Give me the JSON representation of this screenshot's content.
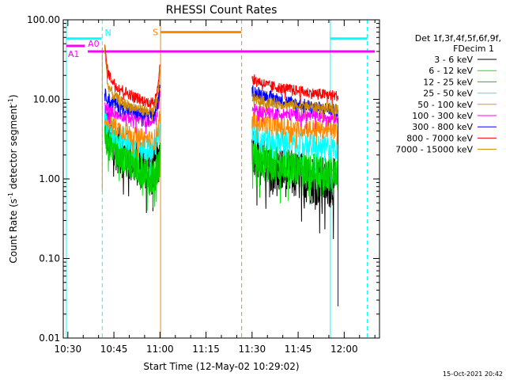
{
  "chart_data": {
    "type": "line",
    "title": "RHESSI Count Rates",
    "xlabel": "Start Time (12-May-02 10:29:02)",
    "ylabel_main": "Count Rate (s",
    "ylabel_sup": "-1",
    "ylabel_rest": " detector segment",
    "ylabel_sup2": "-1",
    "ylabel_end": ")",
    "y_scale": "log",
    "ylim": [
      0.01,
      100
    ],
    "xlim_minutes_after_1029": [
      -0.5,
      102.5
    ],
    "x_ticks": [
      {
        "m": 1,
        "label": "10:30"
      },
      {
        "m": 16,
        "label": "10:45"
      },
      {
        "m": 31,
        "label": "11:00"
      },
      {
        "m": 46,
        "label": "11:15"
      },
      {
        "m": 61,
        "label": "11:30"
      },
      {
        "m": 76,
        "label": "11:45"
      },
      {
        "m": 91,
        "label": "12:00"
      }
    ],
    "y_ticks": [
      {
        "v": 0.01,
        "label": "0.01"
      },
      {
        "v": 0.1,
        "label": "0.10"
      },
      {
        "v": 1,
        "label": "1.00"
      },
      {
        "v": 10,
        "label": "10.00"
      },
      {
        "v": 100,
        "label": "100.00"
      }
    ],
    "legend": {
      "position": "top-right",
      "header1": "Det 1f,3f,4f,5f,6f,9f,",
      "header2": "FDecim 1"
    },
    "series": [
      {
        "name": "3 - 6 keV",
        "color": "#000000",
        "seg1": [
          [
            13,
            5.0
          ],
          [
            15,
            3.2
          ],
          [
            18,
            2.2
          ],
          [
            22,
            1.7
          ],
          [
            26,
            1.5
          ],
          [
            29,
            1.2
          ],
          [
            30.5,
            1.7
          ],
          [
            31,
            2.5
          ]
        ],
        "seg2": [
          [
            61,
            2.5
          ],
          [
            63,
            2.0
          ],
          [
            66,
            1.6
          ],
          [
            70,
            1.3
          ],
          [
            75,
            1.1
          ],
          [
            80,
            1.0
          ],
          [
            85,
            0.9
          ],
          [
            89,
            0.85
          ]
        ],
        "noise": 0.32
      },
      {
        "name": "6 - 12 keV",
        "color": "#00ee00",
        "seg1": [
          [
            13,
            4.0
          ],
          [
            15,
            3.0
          ],
          [
            18,
            2.2
          ],
          [
            22,
            1.6
          ],
          [
            26,
            1.3
          ],
          [
            29,
            1.1
          ],
          [
            30.5,
            1.5
          ],
          [
            31,
            2.0
          ]
        ],
        "seg2": [
          [
            61,
            2.0
          ],
          [
            63,
            1.9
          ],
          [
            66,
            1.7
          ],
          [
            70,
            1.5
          ],
          [
            75,
            1.4
          ],
          [
            80,
            1.3
          ],
          [
            85,
            1.25
          ],
          [
            89,
            1.2
          ]
        ],
        "noise": 0.22
      },
      {
        "name": "12 - 25 keV",
        "color": "#00cc00",
        "seg1": [
          [
            13,
            3.5
          ],
          [
            15,
            2.8
          ],
          [
            18,
            2.0
          ],
          [
            22,
            1.5
          ],
          [
            26,
            1.2
          ],
          [
            29,
            1.0
          ],
          [
            30.5,
            1.4
          ],
          [
            31,
            1.8
          ]
        ],
        "seg2": [
          [
            61,
            1.8
          ],
          [
            63,
            1.7
          ],
          [
            66,
            1.5
          ],
          [
            70,
            1.4
          ],
          [
            75,
            1.3
          ],
          [
            80,
            1.2
          ],
          [
            85,
            1.15
          ],
          [
            89,
            1.1
          ]
        ],
        "noise": 0.22
      },
      {
        "name": "25 - 50 keV",
        "color": "#00ffff",
        "seg1": [
          [
            13,
            5.5
          ],
          [
            15,
            4.3
          ],
          [
            18,
            3.4
          ],
          [
            22,
            2.8
          ],
          [
            26,
            2.5
          ],
          [
            29,
            2.3
          ],
          [
            30.5,
            3.5
          ],
          [
            31,
            5.0
          ]
        ],
        "seg2": [
          [
            61,
            4.0
          ],
          [
            63,
            3.6
          ],
          [
            66,
            3.2
          ],
          [
            70,
            3.0
          ],
          [
            75,
            2.8
          ],
          [
            80,
            2.6
          ],
          [
            85,
            2.5
          ],
          [
            89,
            2.4
          ]
        ],
        "noise": 0.16
      },
      {
        "name": "50 - 100 keV",
        "color": "#ff8800",
        "seg1": [
          [
            13,
            5.8
          ],
          [
            15,
            5.0
          ],
          [
            18,
            4.2
          ],
          [
            22,
            3.6
          ],
          [
            26,
            3.2
          ],
          [
            29,
            3.0
          ],
          [
            30.5,
            4.5
          ],
          [
            31,
            7.0
          ]
        ],
        "seg2": [
          [
            61,
            5.5
          ],
          [
            63,
            5.2
          ],
          [
            66,
            4.8
          ],
          [
            70,
            4.6
          ],
          [
            75,
            4.4
          ],
          [
            80,
            4.3
          ],
          [
            85,
            4.2
          ],
          [
            89,
            4.1
          ]
        ],
        "noise": 0.12
      },
      {
        "name": "100 - 300 keV",
        "color": "#ff00ff",
        "seg1": [
          [
            13,
            8.0
          ],
          [
            15,
            7.2
          ],
          [
            18,
            6.4
          ],
          [
            22,
            5.8
          ],
          [
            26,
            5.4
          ],
          [
            29,
            5.2
          ],
          [
            30.5,
            8.0
          ],
          [
            31,
            12.0
          ]
        ],
        "seg2": [
          [
            61,
            7.5
          ],
          [
            63,
            7.2
          ],
          [
            66,
            6.9
          ],
          [
            70,
            6.6
          ],
          [
            75,
            6.4
          ],
          [
            80,
            6.2
          ],
          [
            85,
            6.1
          ],
          [
            89,
            6.0
          ]
        ],
        "noise": 0.08
      },
      {
        "name": "300 - 800 keV",
        "color": "#0000ff",
        "seg1": [
          [
            13,
            11.5
          ],
          [
            15,
            9.5
          ],
          [
            18,
            8.0
          ],
          [
            22,
            7.0
          ],
          [
            26,
            6.4
          ],
          [
            29,
            6.2
          ],
          [
            30.5,
            9.5
          ],
          [
            31,
            14.0
          ]
        ],
        "seg2": [
          [
            61,
            13.0
          ],
          [
            63,
            12.0
          ],
          [
            66,
            11.0
          ],
          [
            70,
            10.0
          ],
          [
            75,
            9.0
          ],
          [
            80,
            8.2
          ],
          [
            85,
            7.6
          ],
          [
            89,
            7.2
          ]
        ],
        "noise": 0.08,
        "dropTo": 0.025
      },
      {
        "name": "800 - 7000 keV",
        "color": "#ff0000",
        "seg1": [
          [
            13,
            45
          ],
          [
            14,
            22
          ],
          [
            16,
            16
          ],
          [
            19,
            13
          ],
          [
            22,
            11
          ],
          [
            26,
            9.5
          ],
          [
            29,
            9.0
          ],
          [
            30.5,
            16
          ],
          [
            31,
            32
          ]
        ],
        "seg2": [
          [
            61,
            18.0
          ],
          [
            63,
            17.0
          ],
          [
            66,
            15.0
          ],
          [
            70,
            14.0
          ],
          [
            75,
            13.0
          ],
          [
            80,
            12.0
          ],
          [
            85,
            11.5
          ],
          [
            89,
            11.0
          ]
        ],
        "noise": 0.07
      },
      {
        "name": "7000 - 15000 keV",
        "color": "#cc8800",
        "seg1": [
          [
            13,
            45
          ],
          [
            14,
            15
          ],
          [
            16,
            11
          ],
          [
            19,
            9
          ],
          [
            22,
            8
          ],
          [
            26,
            7.2
          ],
          [
            29,
            7.0
          ],
          [
            30.5,
            12
          ],
          [
            31,
            22
          ]
        ],
        "seg2": [
          [
            61,
            10.5
          ],
          [
            63,
            9.8
          ],
          [
            66,
            9.3
          ],
          [
            70,
            8.8
          ],
          [
            75,
            8.4
          ],
          [
            80,
            8.0
          ],
          [
            85,
            7.7
          ],
          [
            89,
            7.5
          ]
        ],
        "noise": 0.07
      }
    ],
    "attenuator_bars": [
      {
        "label": "N",
        "color": "#00ffff",
        "ranges": [
          [
            0.5,
            12.0
          ],
          [
            86.5,
            98.5
          ]
        ],
        "level": 58
      },
      {
        "label": "A0",
        "color": "#ff00ff",
        "ranges": [
          [
            7.5,
            101.0
          ]
        ],
        "level": 40
      },
      {
        "label": "A1",
        "color": "#ff00ff",
        "ranges": [
          [
            0.5,
            6.5
          ]
        ],
        "level": 47
      },
      {
        "label": "S",
        "color": "#ff8800",
        "ranges": [
          [
            31.3,
            57.5
          ]
        ],
        "level": 70
      }
    ],
    "vertical_lines": [
      {
        "m": 0.5,
        "color": "#00ffff",
        "style": "solid"
      },
      {
        "m": 12.2,
        "color": "#00ffff",
        "style": "dashed"
      },
      {
        "m": 31.2,
        "color": "#ff8800",
        "style": "solid"
      },
      {
        "m": 57.6,
        "color": "#ff8800",
        "style": "dashed"
      },
      {
        "m": 86.5,
        "color": "#00ffff",
        "style": "solid"
      },
      {
        "m": 98.5,
        "color": "#00ffff",
        "style": "dashed"
      }
    ],
    "spike": {
      "m": 12.2,
      "low": 0.7,
      "high": 45,
      "color": "#ff8800"
    }
  },
  "footer": {
    "timestamp": "15-Oct-2021 20:42"
  }
}
